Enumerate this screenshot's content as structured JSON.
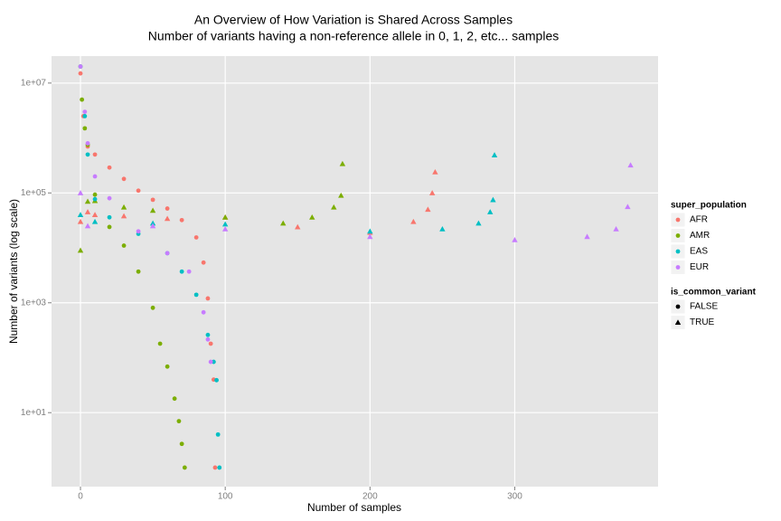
{
  "chart_data": {
    "type": "scatter",
    "title": "An Overview of How Variation is Shared Across Samples",
    "subtitle": "Number of variants having a non-reference allele in 0, 1, 2, etc... samples",
    "x_label": "Number of samples",
    "y_label": "Number of variants (log scale)",
    "log_y": true,
    "grid": true,
    "legend_position": "right",
    "xlim": [
      -20,
      399
    ],
    "ylim": [
      0.45,
      31000000
    ],
    "xticks": [
      0,
      100,
      200,
      300
    ],
    "yticks": [
      {
        "value": 10,
        "label": "1e+01"
      },
      {
        "value": 1000,
        "label": "1e+03"
      },
      {
        "value": 100000,
        "label": "1e+05"
      },
      {
        "value": 10000000,
        "label": "1e+07"
      }
    ],
    "color_legend_title": "super_population",
    "shape_legend": {
      "title": "is_common_variant",
      "items": [
        {
          "label": "FALSE",
          "shape": "circle"
        },
        {
          "label": "TRUE",
          "shape": "triangle"
        }
      ]
    },
    "series": [
      {
        "name": "AFR",
        "color": "#F8766D",
        "groups": [
          {
            "x": [
              0,
              2,
              5,
              10,
              20,
              30,
              40,
              50,
              60,
              70,
              80,
              85,
              88,
              90,
              92,
              93
            ],
            "values": [
              15000000,
              2500000,
              700000,
              500000,
              290000,
              180000,
              110000,
              75000,
              52000,
              32000,
              15500,
              5400,
              1200,
              180,
              40,
              1
            ]
          },
          {
            "x": [
              0,
              5,
              10,
              30,
              60,
              100,
              150,
              200,
              230,
              240,
              243,
              245
            ],
            "values": [
              30000,
              45000,
              40000,
              38000,
              34000,
              36000,
              24000,
              19000,
              30000,
              50000,
              100000,
              240000
            ]
          }
        ]
      },
      {
        "name": "AMR",
        "color": "#7CAE00",
        "groups": [
          {
            "x": [
              0,
              1,
              3,
              5,
              10,
              20,
              30,
              40,
              50,
              55,
              60,
              65,
              68,
              70,
              72
            ],
            "values": [
              20000000,
              5000000,
              1500000,
              750000,
              93000,
              24000,
              11000,
              3700,
              810,
              180,
              69,
              18,
              7,
              2.7,
              1
            ]
          },
          {
            "x": [
              0,
              5,
              10,
              30,
              50,
              100,
              140,
              160,
              175,
              180,
              181
            ],
            "values": [
              9000,
              70000,
              72000,
              55000,
              48000,
              36000,
              28000,
              36000,
              55000,
              90000,
              340000
            ]
          }
        ]
      },
      {
        "name": "EAS",
        "color": "#00BFC4",
        "groups": [
          {
            "x": [
              0,
              3,
              5,
              10,
              20,
              40,
              60,
              70,
              80,
              88,
              92,
              94,
              95,
              96
            ],
            "values": [
              20000000,
              2500000,
              500000,
              77000,
              36000,
              18000,
              8000,
              3700,
              1400,
              260,
              84,
              39,
              4,
              1
            ]
          },
          {
            "x": [
              0,
              10,
              50,
              100,
              200,
              250,
              275,
              283,
              285,
              286
            ],
            "values": [
              40000,
              30000,
              28000,
              27000,
              20000,
              22000,
              28000,
              45000,
              75000,
              490000
            ]
          }
        ]
      },
      {
        "name": "EUR",
        "color": "#C77CFF",
        "groups": [
          {
            "x": [
              0,
              3,
              5,
              10,
              20,
              40,
              60,
              75,
              85,
              88,
              90
            ],
            "values": [
              20000000,
              3000000,
              800000,
              200000,
              80000,
              20000,
              8000,
              3700,
              670,
              215,
              84
            ]
          },
          {
            "x": [
              0,
              5,
              50,
              100,
              200,
              300,
              350,
              370,
              378,
              380
            ],
            "values": [
              100000,
              25000,
              25000,
              22000,
              16000,
              14000,
              16000,
              22000,
              56000,
              320000
            ]
          }
        ]
      }
    ]
  }
}
